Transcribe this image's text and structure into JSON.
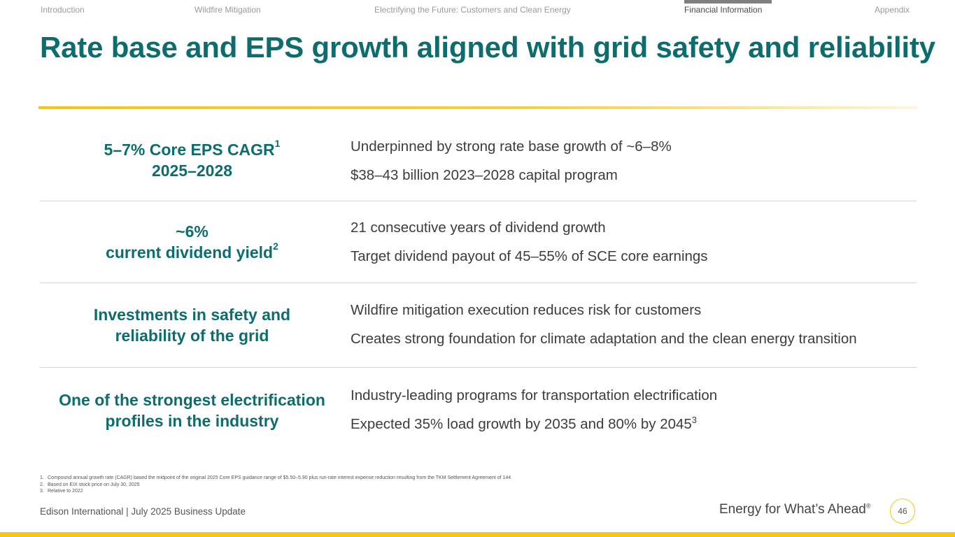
{
  "nav": {
    "items": [
      {
        "label": "Introduction"
      },
      {
        "label": "Wildfire Mitigation"
      },
      {
        "label": "Electrifying the Future: Customers and Clean Energy"
      },
      {
        "label": "Financial Information"
      },
      {
        "label": "Appendix"
      }
    ],
    "active": "Financial Information"
  },
  "title": "Rate base and EPS growth aligned with grid safety and reliability",
  "rows": [
    {
      "left_line1": "5–7% Core EPS CAGR",
      "left_line1_sup": "1",
      "left_line2": "2025–2028",
      "right_line1": "Underpinned by strong rate base growth of ~6–8%",
      "right_line2": "$38–43 billion 2023–2028 capital program"
    },
    {
      "left_line1": "~6%",
      "left_line2": "current dividend yield",
      "left_line2_sup": "2",
      "right_line1": "21 consecutive years of dividend growth",
      "right_line2": "Target dividend payout of 45–55% of SCE core earnings"
    },
    {
      "left_line1": "Investments in safety and",
      "left_line2": "reliability of the grid",
      "right_line1": "Wildfire mitigation execution reduces risk for customers",
      "right_line2": "Creates strong foundation for climate adaptation and the clean energy transition"
    },
    {
      "left_line1": "One of the strongest electrification",
      "left_line2": "profiles in the industry",
      "right_line1": "Industry-leading programs for transportation electrification",
      "right_line2": "Expected 35% load growth by 2035 and 80% by 2045",
      "right_line2_sup": "3"
    }
  ],
  "footnotes": [
    {
      "num": "1.",
      "text": "Compound annual growth rate (CAGR) based the midpoint of the original 2025 Core EPS guidance range of $5.50–5.90 plus run-rate interest expense reduction resulting from the TKM Settlement Agreement of 144"
    },
    {
      "num": "2.",
      "text": "Based on EIX stock price on July 30, 2025"
    },
    {
      "num": "3.",
      "text": "Relative to 2022"
    }
  ],
  "footer": {
    "company": "Edison International",
    "separator": "|",
    "event": "July 2025 Business Update",
    "tagline": "Energy for What’s Ahead",
    "tagline_mark": "®",
    "page_number": "46"
  },
  "colors": {
    "brand_teal": "#0d6d6e",
    "accent_yellow": "#f5c518"
  }
}
